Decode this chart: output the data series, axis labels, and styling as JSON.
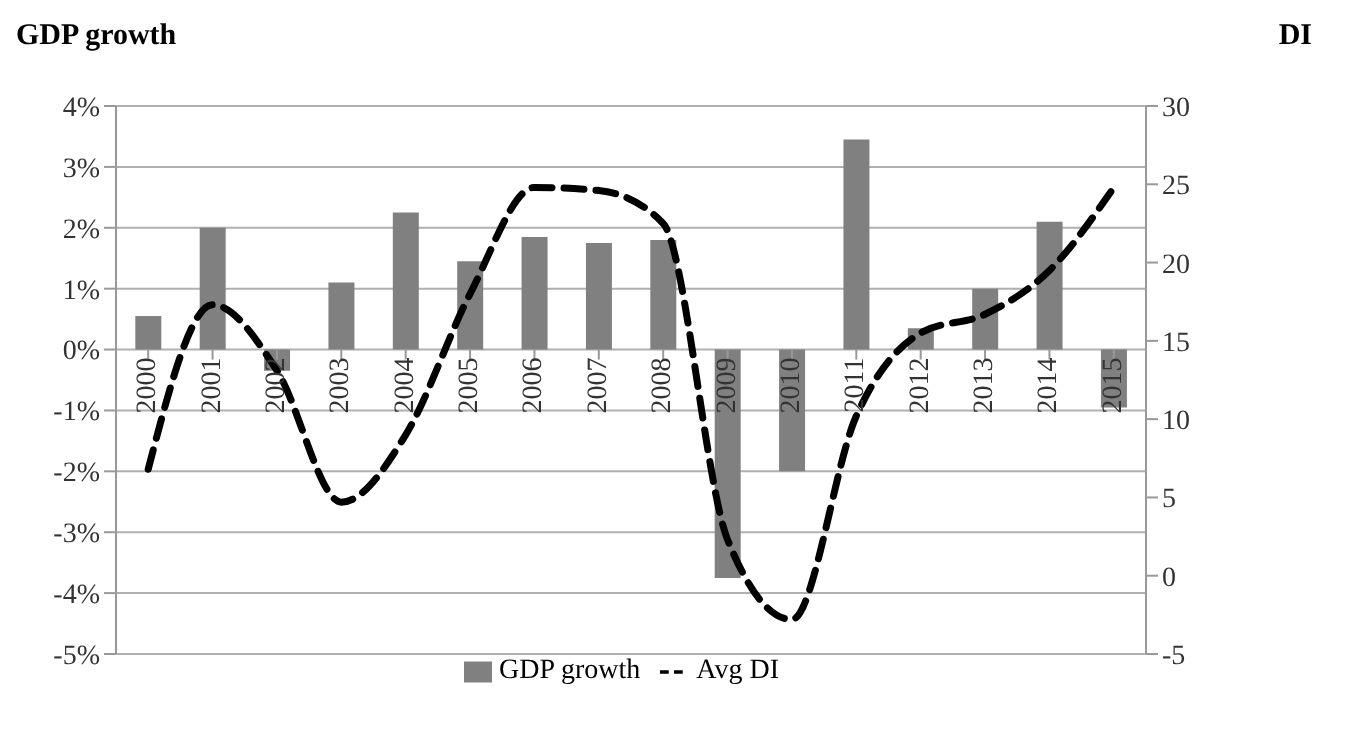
{
  "chart_data": {
    "type": "bar",
    "title": "GDP growth",
    "y2label": "DI",
    "categories": [
      "2000",
      "2001",
      "2002",
      "2003",
      "2004",
      "2005",
      "2006",
      "2007",
      "2008",
      "2009",
      "2010",
      "2011",
      "2012",
      "2013",
      "2014",
      "2015"
    ],
    "series": [
      {
        "name": "GDP growth",
        "color": "#808080",
        "values": [
          0.55,
          2.0,
          -0.35,
          1.1,
          2.25,
          1.45,
          1.85,
          1.75,
          1.8,
          -3.75,
          -2.0,
          3.45,
          0.35,
          1.0,
          2.1,
          -0.95
        ]
      },
      {
        "name": "Avg DI",
        "type": "line",
        "axis": "y2",
        "color": "#000000",
        "line_style": "dashed",
        "values": [
          6.8,
          17.3,
          13.1,
          4.7,
          9.0,
          18.0,
          24.8,
          24.6,
          22.5,
          2.3,
          -2.8,
          10.2,
          15.5,
          16.7,
          19.5,
          24.8
        ]
      }
    ],
    "ylim": [
      -5,
      4
    ],
    "yticks": [
      {
        "value": -5,
        "label": "-5%"
      },
      {
        "value": -4,
        "label": "-4%"
      },
      {
        "value": -3,
        "label": "-3%"
      },
      {
        "value": -2,
        "label": "-2%"
      },
      {
        "value": -1,
        "label": "-1%"
      },
      {
        "value": 0,
        "label": "0%"
      },
      {
        "value": 1,
        "label": "1%"
      },
      {
        "value": 2,
        "label": "2%"
      },
      {
        "value": 3,
        "label": "3%"
      },
      {
        "value": 4,
        "label": "4%"
      }
    ],
    "y2lim": [
      -5,
      30
    ],
    "y2ticks": [
      -5,
      0,
      5,
      10,
      15,
      20,
      25,
      30
    ],
    "grid": "y",
    "legend": "bottom",
    "marker": "none"
  }
}
